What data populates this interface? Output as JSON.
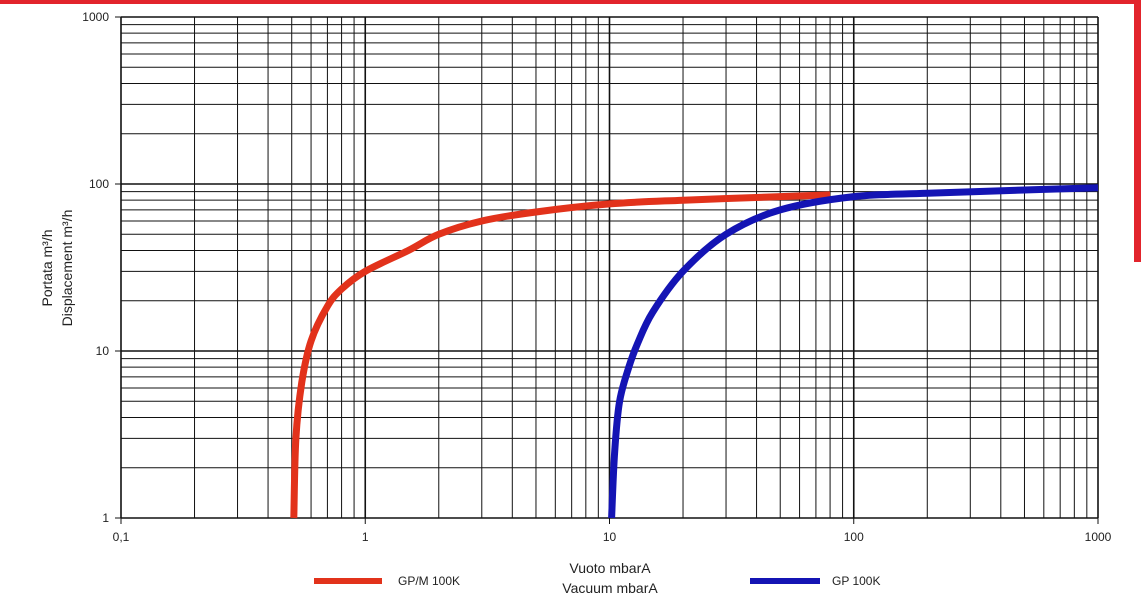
{
  "chart_data": {
    "type": "line",
    "title": "",
    "xlabel": [
      "Vuoto mbarA",
      "Vacuum mbarA"
    ],
    "ylabel": [
      "Portata m³/h",
      "Displacement m³/h"
    ],
    "xscale": "log",
    "yscale": "log",
    "xlim": [
      0.1,
      1000
    ],
    "ylim": [
      1,
      1000
    ],
    "x_ticks": [
      "0,1",
      "1",
      "10",
      "100",
      "1000"
    ],
    "y_ticks": [
      "1",
      "10",
      "100",
      "1000"
    ],
    "grid": true,
    "legend_position": "bottom",
    "series": [
      {
        "name": "GP/M 100K",
        "color": "#e2321b",
        "x": [
          0.51,
          0.52,
          0.55,
          0.6,
          0.7,
          0.8,
          1,
          1.5,
          2,
          3,
          5,
          10,
          20,
          50,
          80
        ],
        "y": [
          1,
          3,
          6.5,
          11.5,
          18.5,
          23.5,
          30,
          40,
          50,
          60,
          68,
          76,
          80,
          84,
          86
        ]
      },
      {
        "name": "GP 100K",
        "color": "#1414b4",
        "x": [
          10.2,
          10.5,
          11,
          12,
          13,
          15,
          20,
          30,
          50,
          100,
          200,
          500,
          1000
        ],
        "y": [
          1,
          2.5,
          5,
          8,
          11,
          17,
          30,
          50,
          70,
          84,
          88,
          92,
          95
        ]
      }
    ]
  }
}
